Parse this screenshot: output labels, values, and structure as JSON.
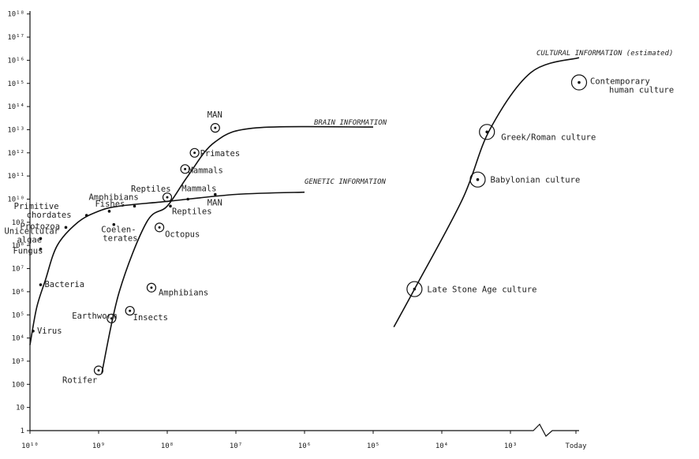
{
  "chart_data": {
    "type": "line",
    "title": "",
    "xlabel": "",
    "ylabel": "",
    "x_scale": "log (years before present, decreasing to the right)",
    "y_scale": "log",
    "y_ticks": [
      "1",
      "10",
      "100",
      "10³",
      "10⁴",
      "10⁵",
      "10⁶",
      "10⁷",
      "10⁸",
      "10⁹",
      "10¹⁰",
      "10¹¹",
      "10¹²",
      "10¹³",
      "10¹⁴",
      "10¹⁵",
      "10¹⁶",
      "10¹⁷",
      "10¹⁸"
    ],
    "x_ticks": [
      "10¹⁰",
      "10⁹",
      "10⁸",
      "10⁷",
      "10⁶",
      "10⁵",
      "10⁴",
      "10³",
      "Today"
    ],
    "series": [
      {
        "name": "GENETIC INFORMATION",
        "points": [
          {
            "x": 10000000000.0,
            "y": 5000.0
          },
          {
            "x": 8000000000.0,
            "y": 200000.0
          },
          {
            "x": 6000000000.0,
            "y": 3000000.0
          },
          {
            "x": 4000000000.0,
            "y": 100000000.0
          },
          {
            "x": 2000000000.0,
            "y": 1000000000.0
          },
          {
            "x": 1000000000.0,
            "y": 3000000000.0
          },
          {
            "x": 500000000.0,
            "y": 5000000000.0
          },
          {
            "x": 100000000.0,
            "y": 8000000000.0
          },
          {
            "x": 10000000.0,
            "y": 16000000000.0
          },
          {
            "x": 1000000.0,
            "y": 20000000000.0
          }
        ]
      },
      {
        "name": "BRAIN INFORMATION",
        "points": [
          {
            "x": 900000000.0,
            "y": 300
          },
          {
            "x": 500000000.0,
            "y": 1000000.0
          },
          {
            "x": 200000000.0,
            "y": 1000000000.0
          },
          {
            "x": 100000000.0,
            "y": 5000000000.0
          },
          {
            "x": 50000000.0,
            "y": 100000000000.0
          },
          {
            "x": 20000000.0,
            "y": 3000000000000.0
          },
          {
            "x": 5000000.0,
            "y": 12000000000000.0
          },
          {
            "x": 100000.0,
            "y": 13000000000000.0
          }
        ]
      },
      {
        "name": "CULTURAL INFORMATION (estimated)",
        "points": [
          {
            "x": 50000.0,
            "y": 30000.0
          },
          {
            "x": 25000.0,
            "y": 1300000.0
          },
          {
            "x": 5000.0,
            "y": 10000000000.0
          },
          {
            "x": 2000.0,
            "y": 10000000000000.0
          },
          {
            "x": 500.0,
            "y": 3000000000000000.0
          },
          {
            "x": 100.0,
            "y": 1.3e+16
          }
        ]
      }
    ],
    "annotations": [
      {
        "text": "Virus",
        "x": 9000000000.0,
        "y": 20000.0,
        "marker": "dot"
      },
      {
        "text": "Bacteria",
        "x": 7000000000.0,
        "y": 2000000.0,
        "marker": "dot"
      },
      {
        "text": "Fungus",
        "x": 7000000000.0,
        "y": 70000000.0,
        "marker": "dot"
      },
      {
        "text": "Unicellular algae",
        "x": 7000000000.0,
        "y": 200000000.0,
        "marker": "dot"
      },
      {
        "text": "Protozoa",
        "x": 3000000000.0,
        "y": 600000000.0,
        "marker": "dot"
      },
      {
        "text": "Primitive chordates",
        "x": 1500000000.0,
        "y": 2000000000.0,
        "marker": "dot"
      },
      {
        "text": "Fishes",
        "x": 700000000.0,
        "y": 3000000000.0,
        "marker": "dot"
      },
      {
        "text": "Amphibians",
        "x": 300000000.0,
        "y": 5000000000.0,
        "marker": "dot"
      },
      {
        "text": "Coelenterates",
        "x": 600000000.0,
        "y": 800000000.0,
        "marker": "dot"
      },
      {
        "text": "Reptiles",
        "x": 90000000.0,
        "y": 5000000000.0,
        "marker": "dot"
      },
      {
        "text": "Mammals",
        "x": 50000000.0,
        "y": 10000000000.0,
        "marker": "dot"
      },
      {
        "text": "MAN",
        "x": 20000000.0,
        "y": 16000000000.0,
        "marker": "dot"
      },
      {
        "text": "Rotifer",
        "x": 1000000000.0,
        "y": 400,
        "marker": "ring"
      },
      {
        "text": "Earthworm",
        "x": 650000000.0,
        "y": 70000.0,
        "marker": "ring"
      },
      {
        "text": "Insects",
        "x": 350000000.0,
        "y": 150000.0,
        "marker": "ring"
      },
      {
        "text": "Amphibians",
        "x": 170000000.0,
        "y": 1500000.0,
        "marker": "ring"
      },
      {
        "text": "Octopus",
        "x": 130000000.0,
        "y": 600000000.0,
        "marker": "ring"
      },
      {
        "text": "Reptiles",
        "x": 100000000.0,
        "y": 12000000000.0,
        "marker": "ring"
      },
      {
        "text": "Mammals",
        "x": 55000000.0,
        "y": 200000000000.0,
        "marker": "ring"
      },
      {
        "text": "Primates",
        "x": 40000000.0,
        "y": 1000000000000.0,
        "marker": "ring"
      },
      {
        "text": "MAN",
        "x": 20000000.0,
        "y": 12000000000000.0,
        "marker": "ring"
      },
      {
        "text": "Late Stone Age culture",
        "x": 25000.0,
        "y": 1300000.0,
        "marker": "big-ring"
      },
      {
        "text": "Babylonian culture",
        "x": 3000.0,
        "y": 70000000000.0,
        "marker": "big-ring"
      },
      {
        "text": "Greek/Roman culture",
        "x": 2200.0,
        "y": 8000000000000.0,
        "marker": "big-ring"
      },
      {
        "text": "Contemporary human culture",
        "x": 100.0,
        "y": 1100000000000000.0,
        "marker": "big-ring"
      }
    ]
  }
}
